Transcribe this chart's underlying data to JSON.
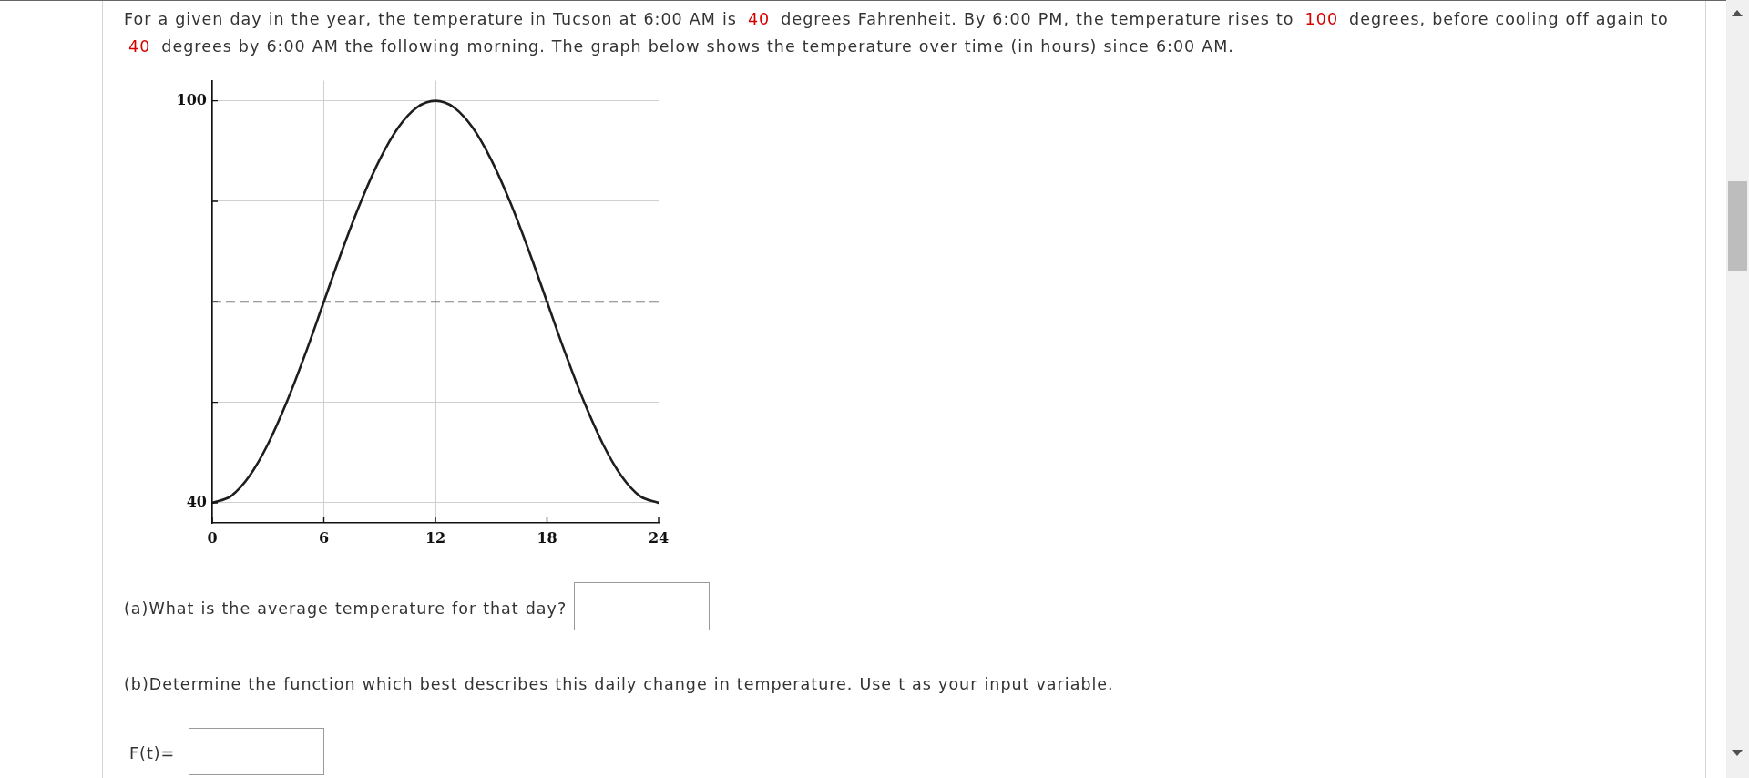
{
  "chart_data": {
    "type": "line",
    "title": "For a given day in the year, the temperature in Tucson at 6:00 AM is 40 degrees Fahrenheit. By 6:00 PM, the temperature rises to 100 degrees, before cooling off again to 40 degrees by 6:00 AM the following morning. The graph below shows the temperature over time (in hours) since 6:00 AM.",
    "x": [
      0,
      1,
      2,
      3,
      4,
      5,
      6,
      7,
      8,
      9,
      10,
      11,
      12,
      13,
      14,
      15,
      16,
      17,
      18,
      19,
      20,
      21,
      22,
      23,
      24
    ],
    "series": [
      {
        "color": "#1e1e1e",
        "values": [
          40,
          41,
          44,
          48.8,
          55,
          62.2,
          70,
          77.8,
          85,
          91.2,
          96,
          99,
          100,
          99,
          96,
          91.2,
          85,
          77.8,
          70,
          62.2,
          55,
          48.8,
          44,
          41,
          40
        ]
      }
    ],
    "xlim": [
      0,
      24
    ],
    "xticks": [
      0,
      6,
      12,
      18,
      24
    ],
    "ylim": [
      37,
      103
    ],
    "yticks": [
      40,
      {
        "value": 55,
        "label": null
      },
      {
        "value": 70,
        "label": null
      },
      {
        "value": 85,
        "label": null
      },
      100
    ],
    "grid": true,
    "marker": "none",
    "ref_lines": [
      {
        "axis": "y",
        "value": 70,
        "color": "#808080",
        "line_style": "dashed"
      }
    ],
    "annotations": [
      "(a)What is the average temperature for that day?",
      "(b)Determine the function which best describes this daily change in temperature. Use t as your input variable.",
      "F(t)="
    ]
  }
}
